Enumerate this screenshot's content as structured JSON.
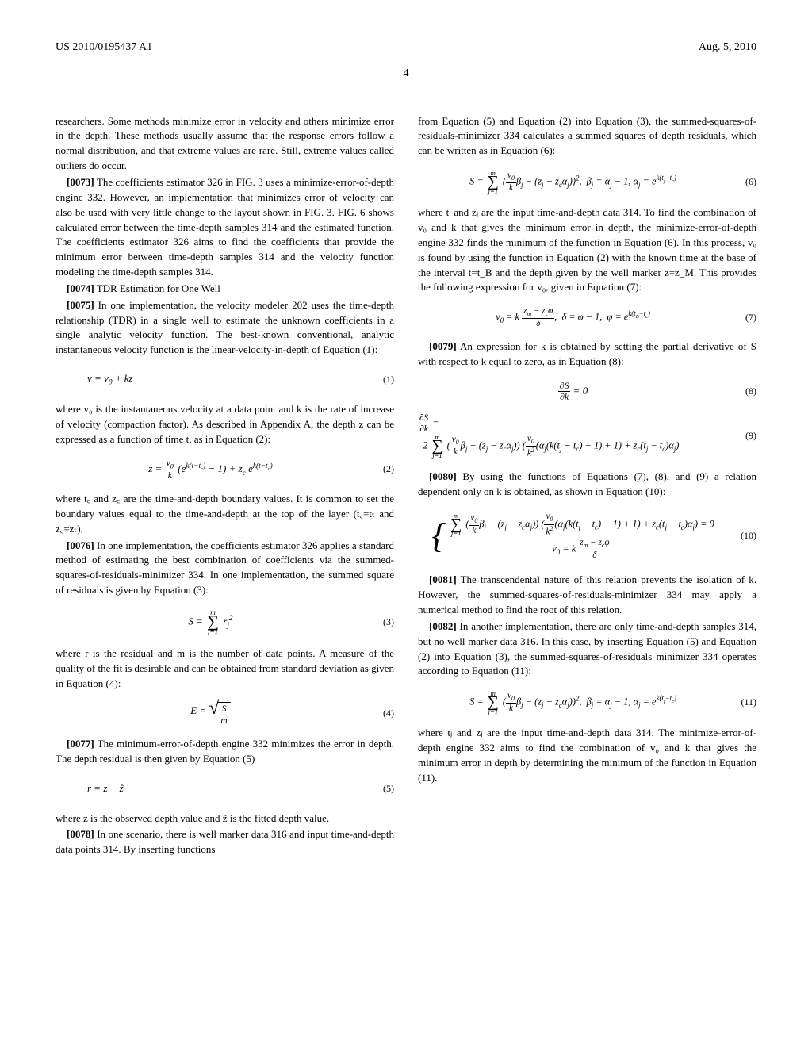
{
  "header": {
    "pub_number": "US 2010/0195437 A1",
    "pub_date": "Aug. 5, 2010"
  },
  "page_number": "4",
  "left": {
    "p0": "researchers. Some methods minimize error in velocity and others minimize error in the depth. These methods usually assume that the response errors follow a normal distribution, and that extreme values are rare. Still, extreme values called outliers do occur.",
    "p0073_num": "[0073]",
    "p0073": "The coefficients estimator 326 in FIG. 3 uses a minimize-error-of-depth engine 332. However, an implementation that minimizes error of velocity can also be used with very little change to the layout shown in FIG. 3. FIG. 6 shows calculated error between the time-depth samples 314 and the estimated function. The coefficients estimator 326 aims to find the coefficients that provide the minimum error between time-depth samples 314 and the velocity function modeling the time-depth samples 314.",
    "p0074_num": "[0074]",
    "p0074": "TDR Estimation for One Well",
    "p0075_num": "[0075]",
    "p0075": "In one implementation, the velocity modeler 202 uses the time-depth relationship (TDR) in a single well to estimate the unknown coefficients in a single analytic velocity function. The best-known conventional, analytic instantaneous velocity function is the linear-velocity-in-depth of Equation (1):",
    "eq1": "v = v₀ + kz",
    "eq1_num": "(1)",
    "p_after1": "where v₀ is the instantaneous velocity at a data point and k is the rate of increase of velocity (compaction factor). As described in Appendix A, the depth z can be expressed as a function of time t, as in Equation (2):",
    "eq2_num": "(2)",
    "p_after2": "where t꜀ and z꜀ are the time-and-depth boundary values. It is common to set the boundary values equal to the time-and-depth at the top of the layer (t꜀=tₜ and z꜀=zₜ).",
    "p0076_num": "[0076]",
    "p0076": "In one implementation, the coefficients estimator 326 applies a standard method of estimating the best combination of coefficients via the summed-squares-of-residuals-minimizer 334. In one implementation, the summed square of residuals is given by Equation (3):",
    "eq3_num": "(3)",
    "p_after3": "where r is the residual and m is the number of data points. A measure of the quality of the fit is desirable and can be obtained from standard deviation as given in Equation (4):",
    "eq4_num": "(4)",
    "p0077_num": "[0077]",
    "p0077": "The minimum-error-of-depth engine 332 minimizes the error in depth. The depth residual is then given by Equation (5)",
    "eq5": "r = z − ẑ",
    "eq5_num": "(5)",
    "p_after5": "where z is the observed depth value and ẑ is the fitted depth value.",
    "p0078_num": "[0078]",
    "p0078": "In one scenario, there is well marker data 316 and input time-and-depth data points 314. By inserting functions"
  },
  "right": {
    "p_top": "from Equation (5) and Equation (2) into Equation (3), the summed-squares-of-residuals-minimizer 334 calculates a summed squares of depth residuals, which can be written as in Equation (6):",
    "eq6_num": "(6)",
    "p_after6a": "where tⱼ and zⱼ are the input time-and-depth data 314. To find the combination of v₀ and k that gives the minimum error in depth, the minimize-error-of-depth engine 332 finds the minimum of the function in Equation (6). In this process, v₀ is found by using the function in Equation (2) with the known time at the base of the interval t=t_B and the depth given by the well marker z=z_M. This provides the following expression for v₀, given in Equation (7):",
    "eq7_num": "(7)",
    "p0079_num": "[0079]",
    "p0079": "An expression for k is obtained by setting the partial derivative of S with respect to k equal to zero, as in Equation (8):",
    "eq8_num": "(8)",
    "eq9_num": "(9)",
    "p0080_num": "[0080]",
    "p0080": "By using the functions of Equations (7), (8), and (9) a relation dependent only on k is obtained, as shown in Equation (10):",
    "eq10_num": "(10)",
    "p0081_num": "[0081]",
    "p0081": "The transcendental nature of this relation prevents the isolation of k. However, the summed-squares-of-residuals-minimizer 334 may apply a numerical method to find the root of this relation.",
    "p0082_num": "[0082]",
    "p0082": "In another implementation, there are only time-and-depth samples 314, but no well marker data 316. In this case, by inserting Equation (5) and Equation (2) into Equation (3), the summed-squares-of-residuals minimizer 334 operates according to Equation (11):",
    "eq11_num": "(11)",
    "p_after11": "where tⱼ and zⱼ are the input time-and-depth data 314. The minimize-error-of-depth engine 332 aims to find the combination of v₀ and k that gives the minimum error in depth by determining the minimum of the function in Equation (11)."
  }
}
